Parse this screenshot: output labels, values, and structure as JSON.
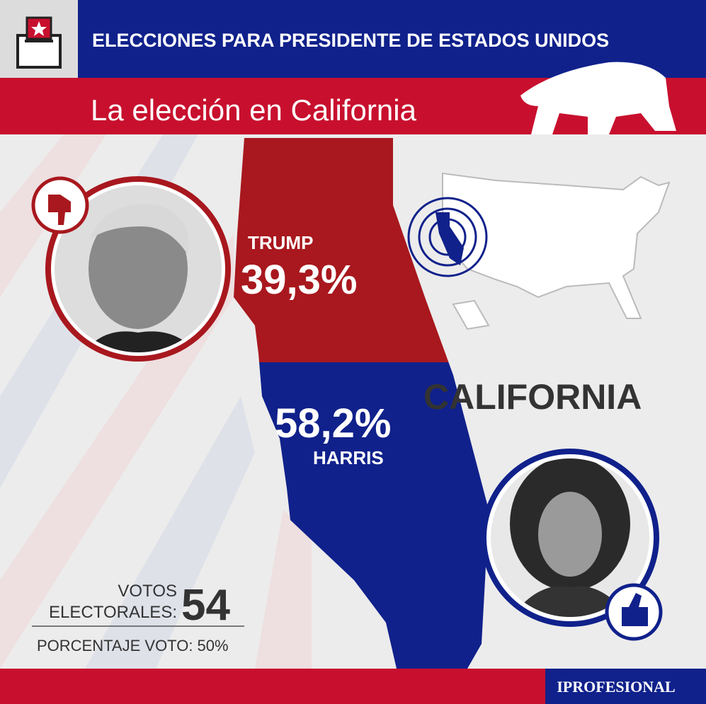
{
  "header": {
    "title": "ELECCIONES PARA PRESIDENTE DE ESTADOS UNIDOS",
    "subtitle": "La elección en California"
  },
  "state": "CALIFORNIA",
  "candidates": [
    {
      "name": "TRUMP",
      "result": "39,3%"
    },
    {
      "name": "HARRIS",
      "result": "58,2%"
    }
  ],
  "electoral": {
    "label_lines": [
      "VOTOS",
      "ELECTORALES:"
    ],
    "value": "54"
  },
  "percentage": "PORCENTAJE VOTO: 50%",
  "footer": {
    "brand": "IPROFESIONAL"
  }
}
